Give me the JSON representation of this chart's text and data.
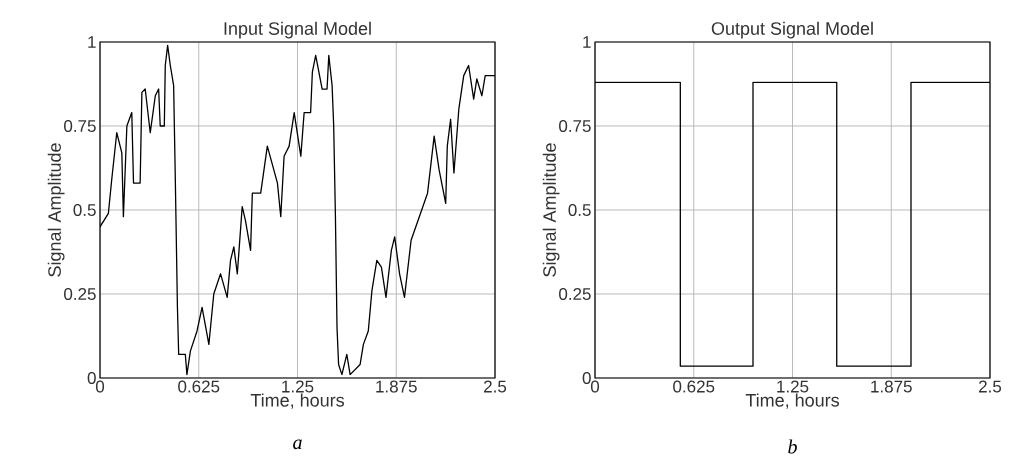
{
  "chart_data": [
    {
      "type": "line",
      "title": "Input Signal Model",
      "xlabel": "Time, hours",
      "ylabel": "Signal Amplitude",
      "annotations": [
        "a"
      ],
      "color": "#000000",
      "grid": true,
      "x": [
        0,
        0.053,
        0.074,
        0.106,
        0.138,
        0.148,
        0.17,
        0.201,
        0.212,
        0.254,
        0.265,
        0.286,
        0.318,
        0.35,
        0.371,
        0.381,
        0.407,
        0.413,
        0.428,
        0.445,
        0.466,
        0.477,
        0.49,
        0.498,
        0.54,
        0.55,
        0.572,
        0.614,
        0.646,
        0.689,
        0.72,
        0.763,
        0.805,
        0.826,
        0.847,
        0.869,
        0.9,
        0.92,
        0.953,
        0.964,
        1.017,
        1.059,
        1.123,
        1.144,
        1.165,
        1.197,
        1.229,
        1.271,
        1.292,
        1.333,
        1.344,
        1.365,
        1.406,
        1.437,
        1.448,
        1.469,
        1.479,
        1.49,
        1.5,
        1.51,
        1.531,
        1.562,
        1.583,
        1.646,
        1.667,
        1.698,
        1.721,
        1.752,
        1.781,
        1.81,
        1.844,
        1.865,
        1.896,
        1.927,
        1.969,
        2.073,
        2.115,
        2.146,
        2.188,
        2.198,
        2.219,
        2.24,
        2.271,
        2.302,
        2.333,
        2.365,
        2.385,
        2.417,
        2.438,
        2.479,
        2.5
      ],
      "values": [
        0.45,
        0.49,
        0.59,
        0.73,
        0.67,
        0.48,
        0.75,
        0.79,
        0.58,
        0.58,
        0.85,
        0.86,
        0.73,
        0.84,
        0.86,
        0.75,
        0.75,
        0.93,
        0.99,
        0.93,
        0.87,
        0.58,
        0.21,
        0.07,
        0.07,
        0.01,
        0.08,
        0.14,
        0.21,
        0.1,
        0.25,
        0.31,
        0.24,
        0.35,
        0.39,
        0.31,
        0.51,
        0.47,
        0.38,
        0.55,
        0.55,
        0.69,
        0.58,
        0.48,
        0.66,
        0.69,
        0.79,
        0.66,
        0.79,
        0.79,
        0.91,
        0.96,
        0.86,
        0.86,
        0.96,
        0.87,
        0.75,
        0.48,
        0.15,
        0.04,
        0.01,
        0.07,
        0.01,
        0.04,
        0.1,
        0.14,
        0.26,
        0.35,
        0.33,
        0.24,
        0.38,
        0.42,
        0.31,
        0.24,
        0.41,
        0.55,
        0.72,
        0.62,
        0.52,
        0.69,
        0.77,
        0.61,
        0.8,
        0.9,
        0.93,
        0.83,
        0.89,
        0.84,
        0.9,
        0.9,
        0.9
      ],
      "xlim": [
        0,
        2.5
      ],
      "ylim": [
        0,
        1
      ],
      "xticks": [
        0,
        0.625,
        1.25,
        1.875,
        2.5
      ],
      "yticks": [
        0,
        0.25,
        0.5,
        0.75,
        1
      ]
    },
    {
      "type": "step",
      "title": "Output Signal Model",
      "xlabel": "Time, hours",
      "ylabel": "Signal Amplitude",
      "annotations": [
        "b"
      ],
      "color": "#000000",
      "grid": true,
      "x": [
        0,
        0.54,
        1.0,
        1.53,
        2.0,
        2.5
      ],
      "values": [
        0.88,
        0.035,
        0.88,
        0.035,
        0.88,
        0.88
      ],
      "xlim": [
        0,
        2.5
      ],
      "ylim": [
        0,
        1
      ],
      "xticks": [
        0,
        0.625,
        1.25,
        1.875,
        2.5
      ],
      "yticks": [
        0,
        0.25,
        0.5,
        0.75,
        1
      ]
    }
  ]
}
